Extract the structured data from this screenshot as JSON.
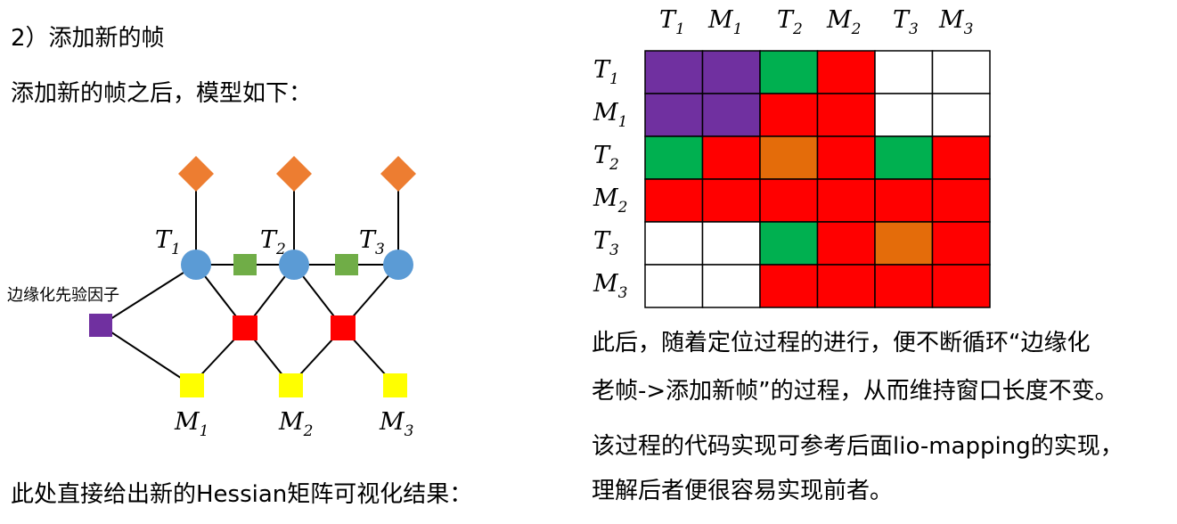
{
  "heading": "2）添加新的帧",
  "intro": "添加新的帧之后，模型如下：",
  "diagram": {
    "prior_label": "边缘化先验因子",
    "pose_labels": [
      {
        "base": "T",
        "sub": "1"
      },
      {
        "base": "T",
        "sub": "2"
      },
      {
        "base": "T",
        "sub": "3"
      }
    ],
    "bias_labels": [
      {
        "base": "M",
        "sub": "1"
      },
      {
        "base": "M",
        "sub": "2"
      },
      {
        "base": "M",
        "sub": "3"
      }
    ],
    "colors": {
      "diamond": "#ED7D31",
      "pose_node": "#5B9BD5",
      "green_factor": "#70AD47",
      "red_factor": "#FF0000",
      "yellow_node": "#FFFF00",
      "prior_factor": "#7030A0"
    }
  },
  "caption_bottom_left": "此处直接给出新的Hessian矩阵可视化结果：",
  "matrix": {
    "col_labels": [
      {
        "base": "T",
        "sub": "1"
      },
      {
        "base": "M",
        "sub": "1"
      },
      {
        "base": "T",
        "sub": "2"
      },
      {
        "base": "M",
        "sub": "2"
      },
      {
        "base": "T",
        "sub": "3"
      },
      {
        "base": "M",
        "sub": "3"
      }
    ],
    "row_labels": [
      {
        "base": "T",
        "sub": "1"
      },
      {
        "base": "M",
        "sub": "1"
      },
      {
        "base": "T",
        "sub": "2"
      },
      {
        "base": "M",
        "sub": "2"
      },
      {
        "base": "T",
        "sub": "3"
      },
      {
        "base": "M",
        "sub": "3"
      }
    ],
    "cells": [
      [
        "P",
        "P",
        "G",
        "R",
        "W",
        "W"
      ],
      [
        "P",
        "P",
        "R",
        "R",
        "W",
        "W"
      ],
      [
        "G",
        "R",
        "O",
        "R",
        "G",
        "R"
      ],
      [
        "R",
        "R",
        "R",
        "R",
        "R",
        "R"
      ],
      [
        "W",
        "W",
        "G",
        "R",
        "O",
        "R"
      ],
      [
        "W",
        "W",
        "R",
        "R",
        "R",
        "R"
      ]
    ],
    "palette": {
      "P": "#7030A0",
      "G": "#00B050",
      "R": "#FF0000",
      "O": "#E46C0A",
      "W": "#FFFFFF"
    }
  },
  "paragraphs": {
    "p1_line1": "此后，随着定位过程的进行，便不断循环“边缘化",
    "p1_line2": "老帧->添加新帧”的过程，从而维持窗口长度不变。",
    "p2_line1": "该过程的代码实现可参考后面lio-mapping的实现，",
    "p2_line2": "理解后者便很容易实现前者。"
  }
}
